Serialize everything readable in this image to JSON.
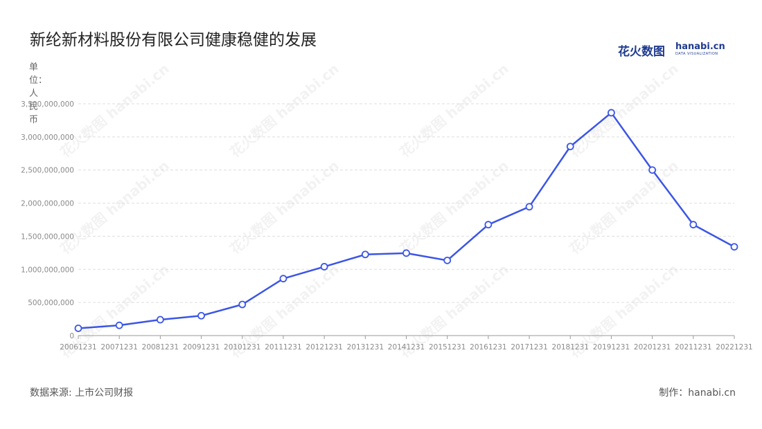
{
  "title": "新纶新材料股份有限公司健康稳健的发展",
  "logo": {
    "cn": "花火数图",
    "en": "hanabi.cn",
    "sub": "DATA VISUALIZATION"
  },
  "unit_label": "单位：人民币",
  "source": "数据来源: 上市公司财报",
  "maker": "制作：hanabi.cn",
  "watermark": "花火数图 hanabi.cn",
  "colors": {
    "line": "#3b55e6",
    "grid": "#dddddd",
    "axis": "#999999",
    "text": "#222222"
  },
  "chart_data": {
    "type": "line",
    "title": "新纶新材料股份有限公司健康稳健的发展",
    "ylabel": "单位：人民币",
    "xlabel": "",
    "grid": true,
    "ylim": [
      0,
      3500000000
    ],
    "yticks": [
      0,
      500000000,
      1000000000,
      1500000000,
      2000000000,
      2500000000,
      3000000000,
      3500000000
    ],
    "ytick_labels": [
      "0",
      "500,000,000",
      "1,000,000,000",
      "1,500,000,000",
      "2,000,000,000",
      "2,500,000,000",
      "3,000,000,000",
      "3,500,000,000"
    ],
    "categories": [
      "20061231",
      "20071231",
      "20081231",
      "20091231",
      "20101231",
      "20111231",
      "20121231",
      "20131231",
      "20141231",
      "20151231",
      "20161231",
      "20171231",
      "20181231",
      "20191231",
      "20201231",
      "20211231",
      "20221231"
    ],
    "series": [
      {
        "values": [
          110000000,
          155000000,
          240000000,
          300000000,
          470000000,
          860000000,
          1040000000,
          1225000000,
          1245000000,
          1135000000,
          1675000000,
          1945000000,
          2855000000,
          3365000000,
          2500000000,
          1675000000,
          1340000000
        ]
      }
    ]
  }
}
